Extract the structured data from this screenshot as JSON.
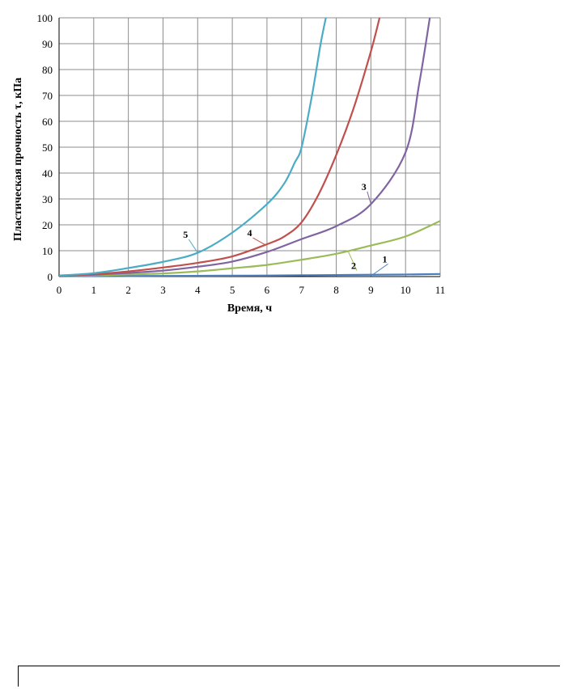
{
  "chart_data": {
    "type": "line",
    "title": "",
    "xlabel": "Время, ч",
    "ylabel": "Пластическая прочность τ, кПа",
    "xlim": [
      0,
      11
    ],
    "ylim": [
      0,
      100
    ],
    "xticks": [
      0,
      1,
      2,
      3,
      4,
      5,
      6,
      7,
      8,
      9,
      10,
      11
    ],
    "yticks": [
      0,
      10,
      20,
      30,
      40,
      50,
      60,
      70,
      80,
      90,
      100
    ],
    "grid": true,
    "legend": "inline labels",
    "series": [
      {
        "name": "1",
        "color": "#4a7ebb",
        "x": [
          0,
          1,
          2,
          3,
          4,
          5,
          6,
          7,
          8,
          9,
          10,
          11
        ],
        "y": [
          0.1,
          0.15,
          0.2,
          0.25,
          0.3,
          0.35,
          0.4,
          0.5,
          0.6,
          0.7,
          0.8,
          1.0
        ]
      },
      {
        "name": "2",
        "color": "#9bbb59",
        "x": [
          0,
          1,
          2,
          3,
          4,
          5,
          6,
          7,
          8,
          9,
          10,
          11
        ],
        "y": [
          0.2,
          0.4,
          0.8,
          1.2,
          2.0,
          3.2,
          4.5,
          6.5,
          8.8,
          12.0,
          15.5,
          21.5
        ]
      },
      {
        "name": "3",
        "color": "#8064a2",
        "x": [
          0,
          1,
          2,
          3,
          4,
          5,
          6,
          7,
          8,
          9,
          10,
          10.4,
          10.7
        ],
        "y": [
          0.2,
          0.7,
          1.4,
          2.3,
          3.8,
          5.8,
          9.5,
          14.5,
          19.5,
          28.0,
          48.0,
          75.0,
          100.0
        ]
      },
      {
        "name": "4",
        "color": "#c0504d",
        "x": [
          0,
          1,
          2,
          3,
          4,
          5,
          6,
          6.5,
          7,
          7.5,
          8,
          8.5,
          9,
          9.25
        ],
        "y": [
          0.3,
          0.9,
          2.0,
          3.5,
          5.3,
          7.8,
          12.5,
          15.5,
          21.0,
          32.0,
          47.0,
          65.0,
          87.0,
          100.0
        ]
      },
      {
        "name": "5",
        "color": "#4bacc6",
        "x": [
          0,
          1,
          2,
          3,
          4,
          5,
          6,
          6.5,
          6.8,
          7,
          7.3,
          7.55,
          7.7
        ],
        "y": [
          0.4,
          1.3,
          3.3,
          5.7,
          9.2,
          17.0,
          28.0,
          36.0,
          44.0,
          50.0,
          70.0,
          90.0,
          100.0
        ]
      }
    ],
    "annotations": [
      {
        "text": "1",
        "series": "1",
        "at_x": 9.05,
        "at_y": 0.7,
        "label_x": 9.4,
        "label_y": 5.5
      },
      {
        "text": "2",
        "series": "2",
        "at_x": 8.35,
        "at_y": 9.6,
        "label_x": 8.5,
        "label_y": 3.0
      },
      {
        "text": "3",
        "series": "3",
        "at_x": 9.0,
        "at_y": 28.0,
        "label_x": 8.8,
        "label_y": 33.5
      },
      {
        "text": "4",
        "series": "4",
        "at_x": 5.95,
        "at_y": 12.3,
        "label_x": 5.5,
        "label_y": 15.6
      },
      {
        "text": "5",
        "series": "5",
        "at_x": 4.0,
        "at_y": 9.2,
        "label_x": 3.65,
        "label_y": 15.0
      }
    ]
  }
}
